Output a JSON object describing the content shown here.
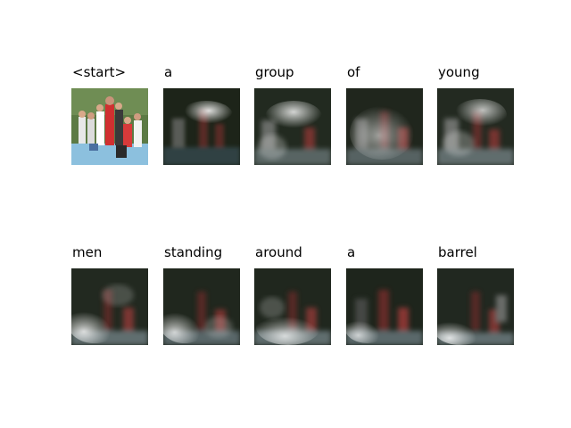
{
  "figure": {
    "rows": [
      {
        "panels": [
          {
            "word": "<start>",
            "kind": "original"
          },
          {
            "word": "a",
            "kind": "attention",
            "focus": "top-center"
          },
          {
            "word": "group",
            "kind": "attention",
            "focus": "top-center"
          },
          {
            "word": "of",
            "kind": "attention",
            "focus": "center-bottom"
          },
          {
            "word": "young",
            "kind": "attention",
            "focus": "top-center"
          }
        ]
      },
      {
        "panels": [
          {
            "word": "men",
            "kind": "attention",
            "focus": "bottom-left"
          },
          {
            "word": "standing",
            "kind": "attention",
            "focus": "bottom-left"
          },
          {
            "word": "around",
            "kind": "attention",
            "focus": "bottom"
          },
          {
            "word": "a",
            "kind": "attention",
            "focus": "bottom-left"
          },
          {
            "word": "barrel",
            "kind": "attention",
            "focus": "bottom-left"
          }
        ]
      }
    ]
  },
  "colors": {
    "text": "#000000",
    "background": "#ffffff",
    "attention_glow": "#ffffff",
    "shirt_red": "#cc2b2b",
    "ground_blue": "#7fb6d6",
    "trees_green": "#4f6b3a"
  }
}
